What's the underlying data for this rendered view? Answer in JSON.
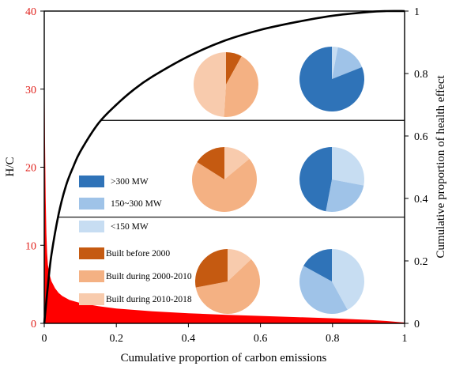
{
  "chart_data": {
    "type": "area",
    "xlabel": "Cumulative proportion of carbon emissions",
    "ylabel_left": "H/C",
    "ylabel_right": "Cumulative proportion of health effect",
    "xlim": [
      0,
      1
    ],
    "ylim_left": [
      0,
      40
    ],
    "ylim_right": [
      0,
      1
    ],
    "xticks": [
      "0",
      "0.2",
      "0.4",
      "0.6",
      "0.8",
      "1"
    ],
    "yticks_left": [
      "0",
      "10",
      "20",
      "30",
      "40"
    ],
    "yticks_right": [
      "0",
      "0.2",
      "0.4",
      "0.6",
      "0.8",
      "1"
    ],
    "colors": {
      "hc_area": "#ff0000",
      "left_axis_text": "#e0201b",
      "cumulative_curve": "#000000",
      "capacity_large": "#2f73b8",
      "capacity_medium": "#9fc3e8",
      "capacity_small": "#c7ddf2",
      "built_before_2000": "#c55a11",
      "built_2000_2010": "#f4b183",
      "built_2010_2018": "#f8cbad"
    },
    "hc_series": {
      "name": "H/C",
      "axis": "left",
      "x": [
        0,
        0.002,
        0.004,
        0.006,
        0.008,
        0.01,
        0.015,
        0.02,
        0.03,
        0.04,
        0.05,
        0.07,
        0.1,
        0.15,
        0.2,
        0.3,
        0.4,
        0.5,
        0.6,
        0.7,
        0.8,
        0.9,
        0.95,
        1.0
      ],
      "y": [
        35,
        24,
        16,
        11.5,
        9,
        7.5,
        6.2,
        5.4,
        4.5,
        3.9,
        3.5,
        3.0,
        2.6,
        2.2,
        1.9,
        1.55,
        1.3,
        1.1,
        0.95,
        0.8,
        0.65,
        0.45,
        0.3,
        0.1
      ]
    },
    "cumulative_series": {
      "name": "Cumulative proportion of health effect",
      "axis": "right",
      "x": [
        0,
        0.01,
        0.02,
        0.04,
        0.06,
        0.08,
        0.1,
        0.15,
        0.2,
        0.25,
        0.3,
        0.4,
        0.5,
        0.6,
        0.7,
        0.8,
        0.9,
        0.95,
        1.0
      ],
      "y": [
        0,
        0.12,
        0.22,
        0.35,
        0.44,
        0.5,
        0.55,
        0.64,
        0.7,
        0.75,
        0.79,
        0.855,
        0.905,
        0.94,
        0.965,
        0.985,
        0.997,
        1.0,
        1.0
      ]
    },
    "group_thresholds": [
      0.65,
      0.34
    ],
    "legend": [
      {
        "label": ">300 MW",
        "color": "#2f73b8"
      },
      {
        "label": "150~300 MW",
        "color": "#9fc3e8"
      },
      {
        "label": "<150 MW",
        "color": "#c7ddf2"
      },
      {
        "label": "Built before 2000",
        "color": "#c55a11"
      },
      {
        "label": "Built during 2000-2010",
        "color": "#f4b183"
      },
      {
        "label": "Built during 2010-2018",
        "color": "#f8cbad"
      }
    ],
    "pies": [
      {
        "group": "top",
        "kind": "build_year",
        "slices": [
          {
            "label": "Built before 2000",
            "value": 8,
            "color": "#c55a11"
          },
          {
            "label": "Built during 2000-2010",
            "value": 43,
            "color": "#f4b183"
          },
          {
            "label": "Built during 2010-2018",
            "value": 49,
            "color": "#f8cbad"
          }
        ]
      },
      {
        "group": "top",
        "kind": "capacity",
        "slices": [
          {
            "label": "<150 MW",
            "value": 3,
            "color": "#c7ddf2"
          },
          {
            "label": "150~300 MW",
            "value": 16,
            "color": "#9fc3e8"
          },
          {
            "label": ">300 MW",
            "value": 81,
            "color": "#2f73b8"
          }
        ]
      },
      {
        "group": "middle",
        "kind": "build_year",
        "slices": [
          {
            "label": "Built during 2010-2018",
            "value": 14,
            "color": "#f8cbad"
          },
          {
            "label": "Built during 2000-2010",
            "value": 70,
            "color": "#f4b183"
          },
          {
            "label": "Built before 2000",
            "value": 16,
            "color": "#c55a11"
          }
        ]
      },
      {
        "group": "middle",
        "kind": "capacity",
        "slices": [
          {
            "label": "<150 MW",
            "value": 28,
            "color": "#c7ddf2"
          },
          {
            "label": "150~300 MW",
            "value": 25,
            "color": "#9fc3e8"
          },
          {
            "label": ">300 MW",
            "value": 47,
            "color": "#2f73b8"
          }
        ]
      },
      {
        "group": "bottom",
        "kind": "build_year",
        "slices": [
          {
            "label": "Built during 2010-2018",
            "value": 13,
            "color": "#f8cbad"
          },
          {
            "label": "Built during 2000-2010",
            "value": 59,
            "color": "#f4b183"
          },
          {
            "label": "Built before 2000",
            "value": 28,
            "color": "#c55a11"
          }
        ]
      },
      {
        "group": "bottom",
        "kind": "capacity",
        "slices": [
          {
            "label": "<150 MW",
            "value": 42,
            "color": "#c7ddf2"
          },
          {
            "label": "150~300 MW",
            "value": 41,
            "color": "#9fc3e8"
          },
          {
            "label": ">300 MW",
            "value": 17,
            "color": "#2f73b8"
          }
        ]
      }
    ]
  }
}
